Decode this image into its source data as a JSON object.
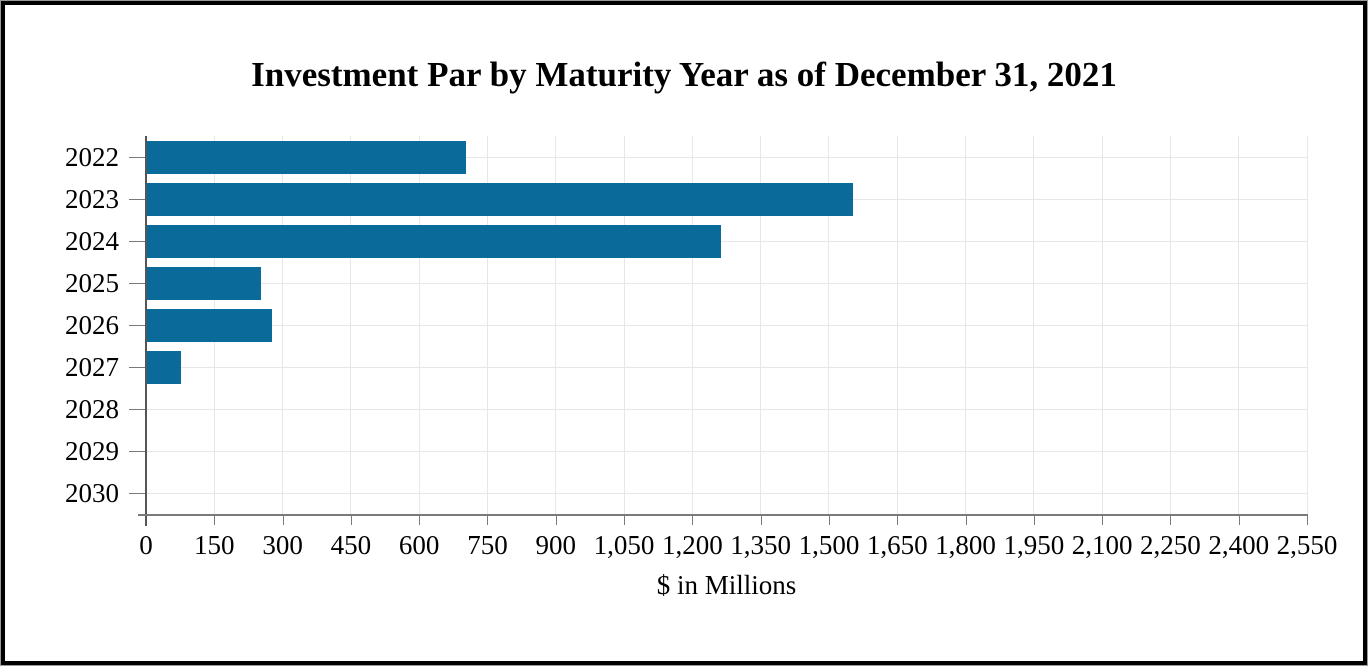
{
  "title": "Investment Par by Maturity Year as of December 31, 2021",
  "chart_data": {
    "type": "bar",
    "orientation": "horizontal",
    "title": "Investment Par by Maturity Year as of December 31, 2021",
    "xlabel": "$ in Millions",
    "ylabel": "",
    "categories": [
      "2022",
      "2023",
      "2024",
      "2025",
      "2026",
      "2027",
      "2028",
      "2029",
      "2030"
    ],
    "values": [
      700,
      1550,
      1260,
      250,
      275,
      75,
      0,
      0,
      0
    ],
    "xlim": [
      0,
      2550
    ],
    "xticks": [
      0,
      150,
      300,
      450,
      600,
      750,
      900,
      1050,
      1200,
      1350,
      1500,
      1650,
      1800,
      1950,
      2100,
      2250,
      2400,
      2550
    ],
    "grid": true,
    "legend": "none",
    "bar_color": "#0a6a9a",
    "axis_color": "#7a7a7a",
    "y_axis_color": "#555555",
    "grid_color": "#e7e7e7",
    "text_color": "#000000"
  }
}
